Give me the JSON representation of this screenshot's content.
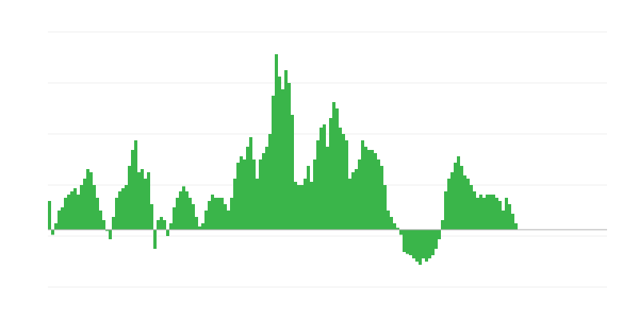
{
  "chart_data": {
    "type": "bar",
    "values": [
      4.5,
      -0.8,
      1,
      3,
      3.5,
      5,
      5.5,
      6,
      6.5,
      5.5,
      7,
      8,
      9.5,
      9,
      7,
      5,
      3,
      1.5,
      -0.2,
      -1.5,
      2,
      5,
      6,
      6.5,
      7,
      10,
      12.5,
      14,
      9,
      9.5,
      8,
      9,
      4,
      -3,
      1.5,
      2,
      1.5,
      -1,
      1,
      3.5,
      5,
      6,
      6.8,
      6,
      5,
      4,
      2,
      0.5,
      1,
      3,
      4.5,
      5.5,
      5,
      5,
      5,
      4,
      3,
      5,
      8,
      10.5,
      11.5,
      11,
      13,
      14.5,
      11,
      8,
      11,
      12,
      13,
      15,
      21,
      27.5,
      24,
      22,
      25,
      23,
      18,
      7.5,
      7,
      7,
      8,
      10,
      7.5,
      11,
      14,
      16,
      16.5,
      13,
      17.5,
      20,
      19,
      16,
      15,
      14,
      8,
      9,
      9.5,
      11,
      14,
      13,
      12.5,
      12.5,
      12,
      11,
      10,
      7,
      3,
      2,
      1,
      0.3,
      -0.8,
      -3.5,
      -3.8,
      -4,
      -4.5,
      -5,
      -5.5,
      -4.5,
      -5,
      -4.5,
      -4,
      -3,
      -1.5,
      1.5,
      6,
      8,
      9,
      10.5,
      11.5,
      10,
      8.5,
      8,
      7,
      6,
      5,
      5.5,
      5,
      5.5,
      5.5,
      5.5,
      5,
      4.5,
      3,
      5,
      4,
      2.5,
      1
    ],
    "color": "#3ab54a",
    "ylim": [
      -9,
      31
    ],
    "yticks": [
      -9,
      -1,
      7,
      15,
      23,
      31
    ],
    "grid": true
  }
}
